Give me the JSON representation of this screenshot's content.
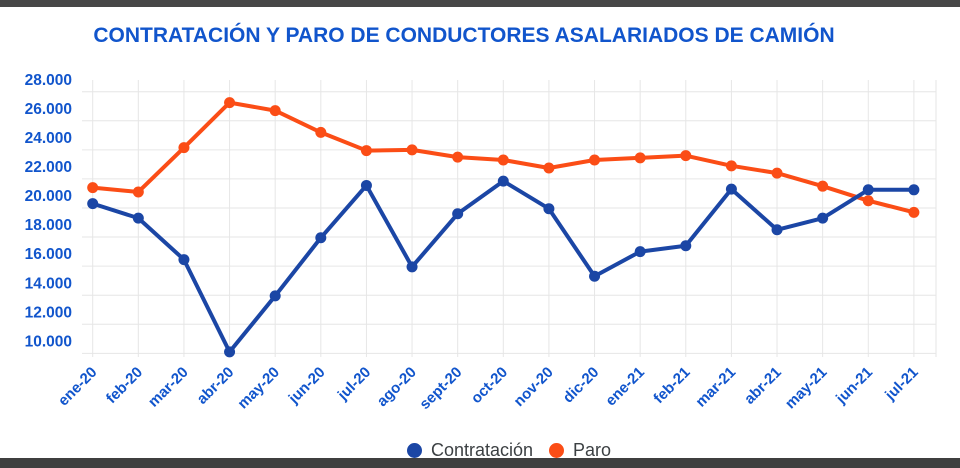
{
  "title": "CONTRATACIÓN Y PARO DE CONDUCTORES ASALARIADOS DE CAMIÓN",
  "chart_data": {
    "type": "line",
    "title": "CONTRATACIÓN Y PARO DE CONDUCTORES ASALARIADOS DE CAMIÓN",
    "categories": [
      "ene-20",
      "feb-20",
      "mar-20",
      "abr-20",
      "may-20",
      "jun-20",
      "jul-20",
      "ago-20",
      "sept-20",
      "oct-20",
      "nov-20",
      "dic-20",
      "ene-21",
      "feb-21",
      "mar-21",
      "abr-21",
      "may-21",
      "jun-21",
      "jul-21"
    ],
    "series": [
      {
        "name": "Contratación",
        "color": "#1b46a5",
        "values": [
          20300,
          19300,
          16450,
          10100,
          13950,
          17950,
          21550,
          15950,
          19600,
          21850,
          19950,
          15300,
          17000,
          17400,
          21300,
          18500,
          19300,
          21250,
          21250
        ]
      },
      {
        "name": "Paro",
        "color": "#fb4d16",
        "values": [
          21400,
          21100,
          24150,
          27250,
          26700,
          25200,
          23950,
          24000,
          23500,
          23300,
          22750,
          23300,
          23450,
          23600,
          22900,
          22400,
          21500,
          20500,
          19700
        ]
      }
    ],
    "y_ticks": {
      "values": [
        28000,
        26000,
        24000,
        22000,
        20000,
        18000,
        16000,
        14000,
        12000,
        10000
      ],
      "labels": [
        "28.000",
        "26.000",
        "24.000",
        "22.000",
        "20.000",
        "18.000",
        "16.000",
        "14.000",
        "12.000",
        "10.000"
      ]
    },
    "ylim": [
      9700,
      28800
    ],
    "xlabel": "",
    "ylabel": "",
    "grid": "both",
    "x_tick_rotation": -45,
    "legend_position": "bottom"
  },
  "legend": {
    "items": [
      {
        "label": "Contratación",
        "color": "#1b46a5"
      },
      {
        "label": "Paro",
        "color": "#fb4d16"
      }
    ]
  },
  "style": {
    "axis_text_color": "#1155cc",
    "gridline_color": "#e6e6e6",
    "title_color": "#1155cc",
    "legend_text_color": "#3c4043"
  }
}
